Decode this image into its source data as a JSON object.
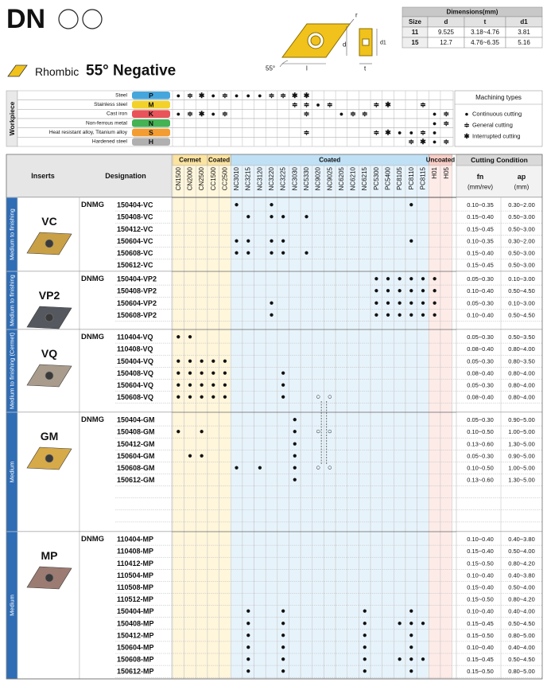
{
  "header": {
    "title": "DN",
    "shape": "Rhombic",
    "angle": "55° Negative"
  },
  "dimensions": {
    "title": "Dimensions(mm)",
    "columns": [
      "Size",
      "d",
      "t",
      "d1"
    ],
    "rows": [
      [
        "11",
        "9.525",
        "3.18~4.76",
        "3.81"
      ],
      [
        "15",
        "12.7",
        "4.76~6.35",
        "5.16"
      ]
    ]
  },
  "diagram": {
    "labels": [
      "r",
      "d",
      "d1",
      "55°",
      "l",
      "t"
    ]
  },
  "workpiece": {
    "label": "Workpiece",
    "rows": [
      {
        "name": "Steel",
        "code": "P",
        "marks": {
          "CN1500": "●",
          "CN2000": "≑",
          "CN2500": "✱",
          "CC1500": "●",
          "CC2500": "≑",
          "NC3010": "●",
          "NC3215": "●",
          "NC3120": "●",
          "NC3220": "≑",
          "NC3225": "≑",
          "NC3030": "✱",
          "NC5330": "✱"
        }
      },
      {
        "name": "Stainless steel",
        "code": "M",
        "marks": {
          "NC3030": "≑",
          "NC5330": "≑",
          "NC9020": "●",
          "NC9025": "≑",
          "PC5300": "≑",
          "PC5400": "✱",
          "PC8115": "≑"
        }
      },
      {
        "name": "Cast iron",
        "code": "K",
        "marks": {
          "CN1500": "●",
          "CN2000": "≑",
          "CN2500": "✱",
          "CC1500": "●",
          "CC2500": "≑",
          "NC5330": "≑",
          "NC6205": "●",
          "NC6210": "≑",
          "NC6215": "≑",
          "H01": "●",
          "H05": "≑"
        }
      },
      {
        "name": "Non-ferrous metal",
        "code": "N",
        "marks": {
          "H01": "●",
          "H05": "≑"
        }
      },
      {
        "name": "Heat resistant alloy, Titanium alloy",
        "code": "S",
        "marks": {
          "NC5330": "≑",
          "PC5300": "≑",
          "PC5400": "✱",
          "PC8105": "●",
          "PC8110": "●",
          "PC8115": "≑",
          "H01": "●"
        }
      },
      {
        "name": "Hardened steel",
        "code": "H",
        "marks": {
          "PC8110": "≑",
          "PC8115": "✱",
          "H01": "●",
          "H05": "≑"
        }
      }
    ]
  },
  "machining_types": {
    "title": "Machining types",
    "items": [
      {
        "symbol": "●",
        "label": "Continuous cutting"
      },
      {
        "symbol": "≑",
        "label": "General cutting"
      },
      {
        "symbol": "✱",
        "label": "Interrupted cutting"
      }
    ]
  },
  "table": {
    "headers": {
      "inserts": "Inserts",
      "designation": "Designation",
      "cutting_condition": "Cutting Condition",
      "fn": "fn",
      "fn_unit": "(mm/rev)",
      "ap": "ap",
      "ap_unit": "(mm)"
    },
    "groups": [
      {
        "name": "Cermet",
        "grades": [
          "CN1500",
          "CN2000",
          "CN2500"
        ]
      },
      {
        "name": "Coated",
        "grades": [
          "CC1500",
          "CC2500"
        ]
      },
      {
        "name": "Coated",
        "grades": [
          "NC3010",
          "NC3215",
          "NC3120",
          "NC3220",
          "NC3225",
          "NC3030",
          "NC5330",
          "NC9020",
          "NC9025",
          "NC6205",
          "NC6210",
          "NC6215",
          "PC5300",
          "PC5400",
          "PC8105",
          "PC8110",
          "PC8115"
        ]
      },
      {
        "name": "Uncoated",
        "grades": [
          "H01",
          "H05"
        ]
      }
    ],
    "sections": [
      {
        "label": "Medium to finishing",
        "insert": "VC",
        "prefix": "DNMG",
        "rows": [
          {
            "designation": "150404-VC",
            "marks": {
              "NC3010": "●",
              "NC3220": "●",
              "PC8110": "●"
            },
            "fn": "0.10~0.35",
            "ap": "0.30~2.00"
          },
          {
            "designation": "150408-VC",
            "marks": {
              "NC3215": "●",
              "NC3220": "●",
              "NC3225": "●",
              "NC5330": "●"
            },
            "fn": "0.15~0.40",
            "ap": "0.50~3.00"
          },
          {
            "designation": "150412-VC",
            "fn": "0.15~0.45",
            "ap": "0.50~3.00"
          },
          {
            "designation": "150604-VC",
            "marks": {
              "NC3010": "●",
              "NC3215": "●",
              "NC3220": "●",
              "NC3225": "●",
              "PC8110": "●"
            },
            "fn": "0.10~0.35",
            "ap": "0.30~2.00"
          },
          {
            "designation": "150608-VC",
            "marks": {
              "NC3010": "●",
              "NC3215": "●",
              "NC3220": "●",
              "NC3225": "●",
              "NC5330": "●"
            },
            "fn": "0.15~0.40",
            "ap": "0.50~3.00"
          },
          {
            "designation": "150612-VC",
            "fn": "0.15~0.45",
            "ap": "0.50~3.00"
          }
        ]
      },
      {
        "label": "Medium to finishing",
        "insert": "VP2",
        "prefix": "DNMG",
        "rows": [
          {
            "designation": "150404-VP2",
            "marks": {
              "PC5300": "●",
              "PC5400": "●",
              "PC8105": "●",
              "PC8110": "●",
              "PC8115": "●",
              "H01": "●"
            },
            "fn": "0.05~0.30",
            "ap": "0.10~3.00"
          },
          {
            "designation": "150408-VP2",
            "marks": {
              "PC5300": "●",
              "PC5400": "●",
              "PC8105": "●",
              "PC8110": "●",
              "PC8115": "●",
              "H01": "●"
            },
            "fn": "0.10~0.40",
            "ap": "0.50~4.50"
          },
          {
            "designation": "150604-VP2",
            "marks": {
              "NC3220": "●",
              "PC5300": "●",
              "PC5400": "●",
              "PC8105": "●",
              "PC8110": "●",
              "PC8115": "●",
              "H01": "●"
            },
            "fn": "0.05~0.30",
            "ap": "0.10~3.00"
          },
          {
            "designation": "150608-VP2",
            "marks": {
              "NC3220": "●",
              "PC5300": "●",
              "PC5400": "●",
              "PC8105": "●",
              "PC8110": "●",
              "PC8115": "●",
              "H01": "●"
            },
            "fn": "0.10~0.40",
            "ap": "0.50~4.50"
          }
        ]
      },
      {
        "label": "Medium to finishing (Cermet)",
        "insert": "VQ",
        "prefix": "DNMG",
        "rows": [
          {
            "designation": "110404-VQ",
            "marks": {
              "CN1500": "●",
              "CN2000": "●"
            },
            "fn": "0.05~0.30",
            "ap": "0.50~3.50"
          },
          {
            "designation": "110408-VQ",
            "fn": "0.08~0.40",
            "ap": "0.80~4.00"
          },
          {
            "designation": "150404-VQ",
            "marks": {
              "CN1500": "●",
              "CN2000": "●",
              "CN2500": "●",
              "CC1500": "●",
              "CC2500": "●"
            },
            "fn": "0.05~0.30",
            "ap": "0.80~3.50"
          },
          {
            "designation": "150408-VQ",
            "marks": {
              "CN1500": "●",
              "CN2000": "●",
              "CN2500": "●",
              "CC1500": "●",
              "CC2500": "●",
              "NC3225": "●"
            },
            "fn": "0.08~0.40",
            "ap": "0.80~4.00"
          },
          {
            "designation": "150604-VQ",
            "marks": {
              "CN1500": "●",
              "CN2000": "●",
              "CN2500": "●",
              "CC1500": "●",
              "CC2500": "●",
              "NC3225": "●"
            },
            "fn": "0.05~0.30",
            "ap": "0.80~4.00"
          },
          {
            "designation": "150608-VQ",
            "marks": {
              "CN1500": "●",
              "CN2000": "●",
              "CN2500": "●",
              "CC1500": "●",
              "CC2500": "●",
              "NC3225": "●",
              "NC9020": "○",
              "NC9025": "○"
            },
            "fn": "0.08~0.40",
            "ap": "0.80~4.00"
          }
        ]
      },
      {
        "label": "Medium",
        "insert": "GM",
        "prefix": "DNMG",
        "rows": [
          {
            "designation": "150404-GM",
            "marks": {
              "NC3030": "●"
            },
            "fn": "0.05~0.30",
            "ap": "0.90~5.00"
          },
          {
            "designation": "150408-GM",
            "marks": {
              "CN1500": "●",
              "CN2500": "●",
              "NC3030": "●",
              "NC9020": "○",
              "NC9025": "○"
            },
            "fn": "0.10~0.50",
            "ap": "1.00~5.00"
          },
          {
            "designation": "150412-GM",
            "marks": {
              "NC3030": "●"
            },
            "fn": "0.13~0.60",
            "ap": "1.30~5.00"
          },
          {
            "designation": "150604-GM",
            "marks": {
              "CN2000": "●",
              "CN2500": "●",
              "NC3030": "●"
            },
            "fn": "0.05~0.30",
            "ap": "0.90~5.00"
          },
          {
            "designation": "150608-GM",
            "marks": {
              "NC3010": "●",
              "NC3120": "●",
              "NC3030": "●",
              "NC9020": "○",
              "NC9025": "○"
            },
            "fn": "0.10~0.50",
            "ap": "1.00~5.00"
          },
          {
            "designation": "150612-GM",
            "marks": {
              "NC3030": "●"
            },
            "fn": "0.13~0.60",
            "ap": "1.30~5.00"
          }
        ]
      },
      {
        "label": "Medium",
        "insert": "MP",
        "prefix": "DNMG",
        "rows": [
          {
            "designation": "110404-MP",
            "fn": "0.10~0.40",
            "ap": "0.40~3.80"
          },
          {
            "designation": "110408-MP",
            "fn": "0.15~0.40",
            "ap": "0.50~4.00"
          },
          {
            "designation": "110412-MP",
            "fn": "0.15~0.50",
            "ap": "0.80~4.20"
          },
          {
            "designation": "110504-MP",
            "fn": "0.10~0.40",
            "ap": "0.40~3.80"
          },
          {
            "designation": "110508-MP",
            "fn": "0.15~0.40",
            "ap": "0.50~4.00"
          },
          {
            "designation": "110512-MP",
            "fn": "0.15~0.50",
            "ap": "0.80~4.20"
          },
          {
            "designation": "150404-MP",
            "marks": {
              "NC3215": "●",
              "NC3225": "●",
              "NC6215": "●",
              "PC8110": "●"
            },
            "fn": "0.10~0.40",
            "ap": "0.40~4.00"
          },
          {
            "designation": "150408-MP",
            "marks": {
              "NC3215": "●",
              "NC3225": "●",
              "NC6215": "●",
              "PC8105": "●",
              "PC8110": "●",
              "PC8115": "●"
            },
            "fn": "0.15~0.45",
            "ap": "0.50~4.50"
          },
          {
            "designation": "150412-MP",
            "marks": {
              "NC3215": "●",
              "NC3225": "●",
              "NC6215": "●",
              "PC8110": "●"
            },
            "fn": "0.15~0.50",
            "ap": "0.80~5.00"
          },
          {
            "designation": "150604-MP",
            "marks": {
              "NC3215": "●",
              "NC3225": "●",
              "NC6215": "●",
              "PC8110": "●"
            },
            "fn": "0.10~0.40",
            "ap": "0.40~4.00"
          },
          {
            "designation": "150608-MP",
            "marks": {
              "NC3215": "●",
              "NC3225": "●",
              "NC6215": "●",
              "PC8105": "●",
              "PC8110": "●",
              "PC8115": "●"
            },
            "fn": "0.15~0.45",
            "ap": "0.50~4.50"
          },
          {
            "designation": "150612-MP",
            "marks": {
              "NC3215": "●",
              "NC3225": "●",
              "NC6215": "●",
              "PC8110": "●"
            },
            "fn": "0.15~0.50",
            "ap": "0.80~5.00"
          }
        ]
      }
    ]
  }
}
